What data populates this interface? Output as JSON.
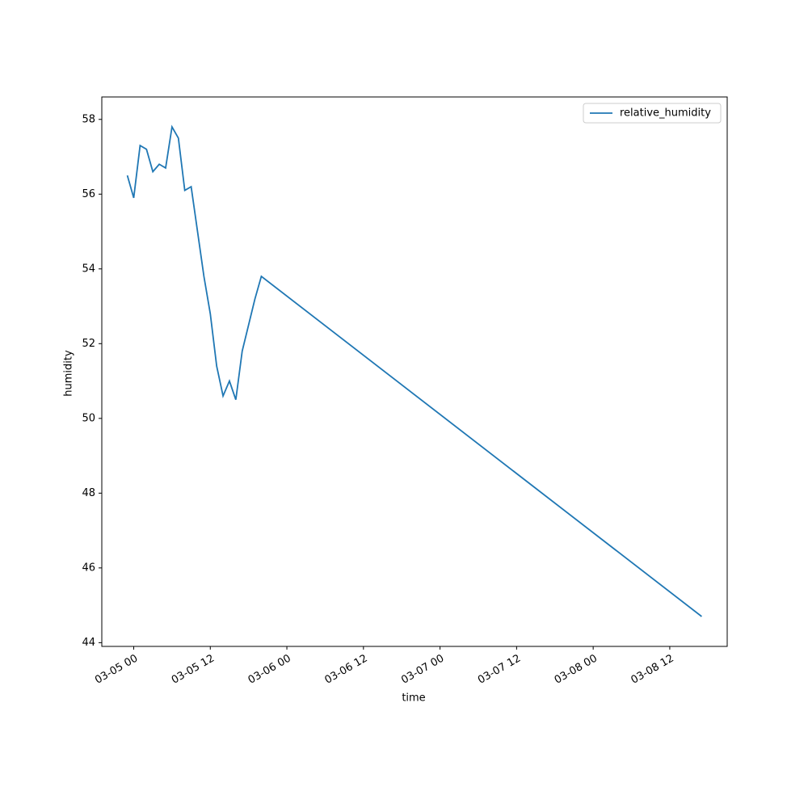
{
  "chart_data": {
    "type": "line",
    "x": [
      "03-04 23",
      "03-05 00",
      "03-05 01",
      "03-05 02",
      "03-05 03",
      "03-05 04",
      "03-05 05",
      "03-05 06",
      "03-05 07",
      "03-05 08",
      "03-05 09",
      "03-05 10",
      "03-05 11",
      "03-05 12",
      "03-05 13",
      "03-05 14",
      "03-05 15",
      "03-05 16",
      "03-05 17",
      "03-05 18",
      "03-05 19",
      "03-05 20",
      "03-08 17"
    ],
    "series": [
      {
        "name": "relative_humidity",
        "color": "#1f77b4",
        "values": [
          56.5,
          55.9,
          57.3,
          57.2,
          56.6,
          56.8,
          56.7,
          57.8,
          57.5,
          56.1,
          56.2,
          55.0,
          53.8,
          52.8,
          51.4,
          50.6,
          51.0,
          50.5,
          51.8,
          52.5,
          53.2,
          53.8,
          44.7
        ]
      }
    ],
    "xlabel": "time",
    "ylabel": "humidity",
    "xlim": [
      "03-04 19",
      "03-08 21"
    ],
    "xticks": [
      "03-05 00",
      "03-05 12",
      "03-06 00",
      "03-06 12",
      "03-07 00",
      "03-07 12",
      "03-08 00",
      "03-08 12"
    ],
    "ylim": [
      43.9,
      58.6
    ],
    "yticks": [
      44,
      46,
      48,
      50,
      52,
      54,
      56,
      58
    ],
    "grid": false,
    "legend": "upper right"
  }
}
